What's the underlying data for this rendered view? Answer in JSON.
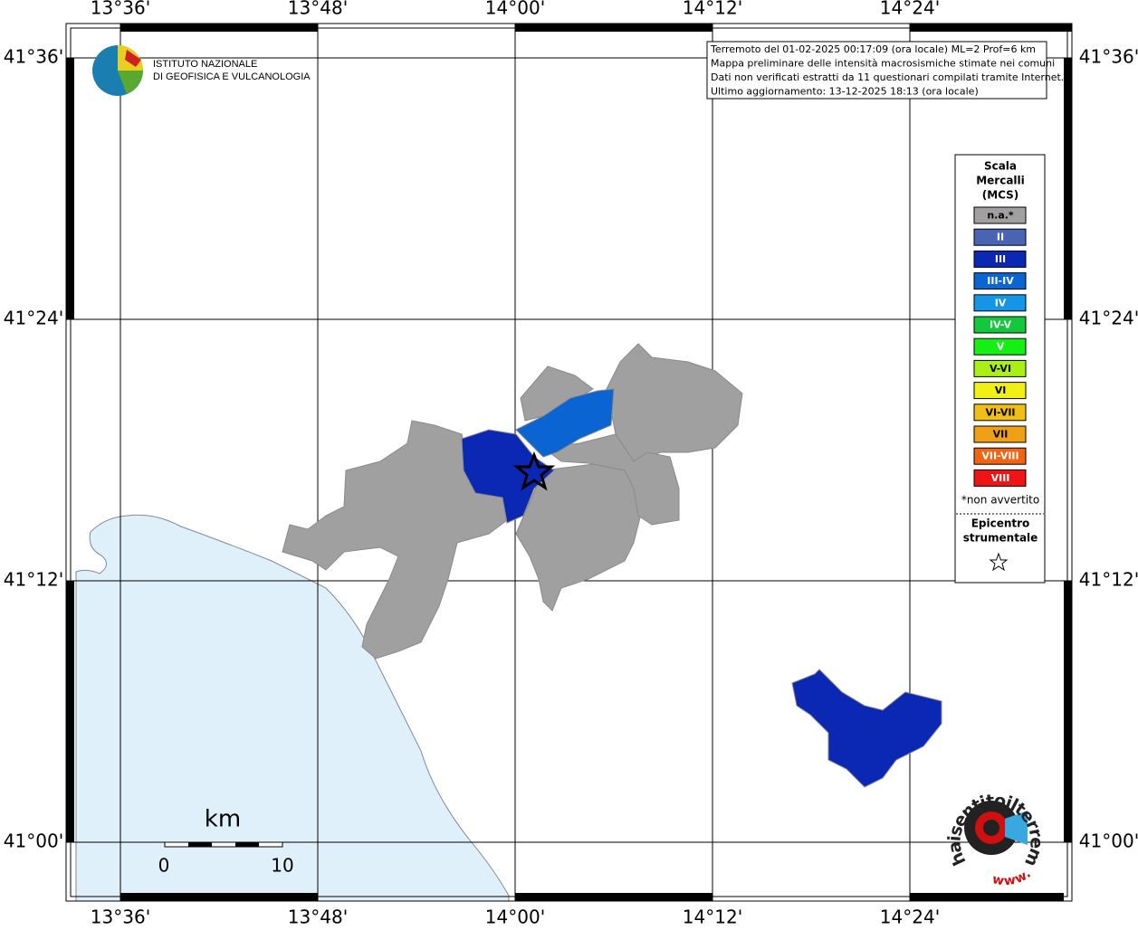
{
  "map": {
    "lon_labels": [
      "13°36'",
      "13°48'",
      "14°00'",
      "14°12'",
      "14°24'"
    ],
    "lat_labels": [
      "41°36'",
      "41°24'",
      "41°12'",
      "41°00'"
    ],
    "info": [
      "Terremoto del 01-02-2025 00:17:09 (ora locale) ML=2 Prof=6 km",
      "Mappa preliminare delle intensità macrosismiche stimate nei comuni",
      "Dati non verificati estratti da 11 questionari compilati tramite Internet.",
      "Ultimo aggiornamento: 13-12-2025 18:13 (ora locale)"
    ],
    "logo": [
      "ISTITUTO NAZIONALE",
      "DI GEOFISICA E VULCANOLOGIA"
    ],
    "legend": {
      "title": [
        "Scala",
        "Mercalli",
        "(MCS)"
      ],
      "items": [
        {
          "label": "n.a.*",
          "color": "#a0a0a0"
        },
        {
          "label": "II",
          "color": "#4a64b4"
        },
        {
          "label": "III",
          "color": "#0a28b4"
        },
        {
          "label": "III-IV",
          "color": "#0a64d2"
        },
        {
          "label": "IV",
          "color": "#1496e6"
        },
        {
          "label": "IV-V",
          "color": "#14c83c"
        },
        {
          "label": "V",
          "color": "#14f014"
        },
        {
          "label": "V-VI",
          "color": "#aaf014"
        },
        {
          "label": "VI",
          "color": "#f0f014"
        },
        {
          "label": "VI-VII",
          "color": "#f0be14"
        },
        {
          "label": "VII",
          "color": "#f0a014"
        },
        {
          "label": "VII-VIII",
          "color": "#f06414"
        },
        {
          "label": "VIII",
          "color": "#f01414"
        }
      ],
      "note": "*non avvertito",
      "epicenter": [
        "Epicentro",
        "strumentale"
      ]
    },
    "scale": {
      "unit": "km",
      "labels": [
        "0",
        "10"
      ]
    },
    "badge": [
      "haisentitoilterremoto.it",
      "www."
    ]
  }
}
